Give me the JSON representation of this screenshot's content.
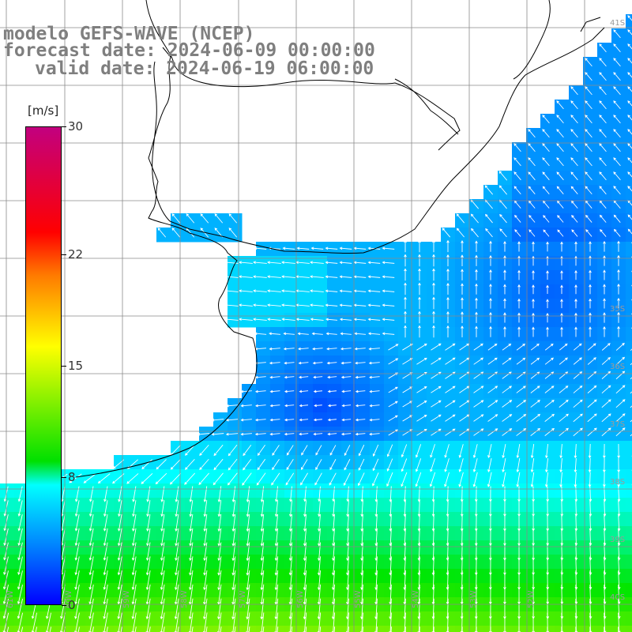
{
  "header": {
    "model": "modelo GEFS-WAVE (NCEP)",
    "forecast": "forecast date: 2024-06-09 00:00:00",
    "valid": "valid date: 2024-06-19 06:00:00"
  },
  "colorbar": {
    "unit": "[m/s]",
    "ticks": [
      {
        "label": "30",
        "value": 30
      },
      {
        "label": "22",
        "value": 22
      },
      {
        "label": "15",
        "value": 15
      },
      {
        "label": "8",
        "value": 8
      },
      {
        "label": "0",
        "value": 0
      }
    ],
    "colors": [
      "#0000ff",
      "#0080ff",
      "#00ffff",
      "#00e000",
      "#ffff00",
      "#ff7a00",
      "#ff0000",
      "#c2007f"
    ]
  },
  "grid": {
    "lat_labels": [
      "35S",
      "36S",
      "37S",
      "38S",
      "39S",
      "40S",
      "41S"
    ],
    "lon_labels": [
      "61W",
      "60W",
      "59W",
      "58W",
      "57W",
      "56W",
      "55W",
      "54W",
      "53W",
      "52W"
    ]
  },
  "legend": {
    "land_color": "#ffffff",
    "coast_color": "#000000",
    "arrow_color": "#ffffff"
  }
}
